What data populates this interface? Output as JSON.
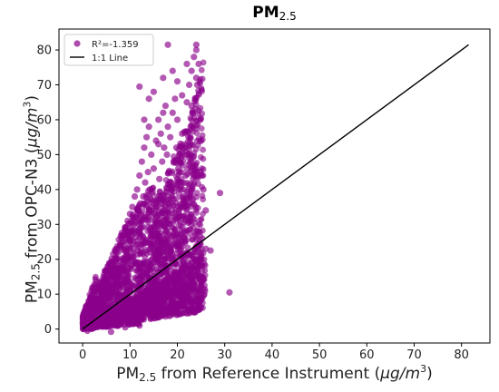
{
  "chart_data": {
    "type": "scatter",
    "title": {
      "main": "PM",
      "sub": "2.5"
    },
    "xlabel": {
      "pre": "PM",
      "sub": "2.5",
      "mid": " from Reference Instrument (",
      "italic": "μg/m",
      "sup": "3",
      "post": ")"
    },
    "ylabel": {
      "pre": "PM",
      "sub": "2.5",
      "mid": " from OPC-N3 (",
      "italic": "μg/m",
      "sup": "3",
      "post": ")"
    },
    "xlim": [
      -5,
      86
    ],
    "ylim": [
      -4,
      86
    ],
    "xticks": [
      0,
      10,
      20,
      30,
      40,
      50,
      60,
      70,
      80
    ],
    "yticks": [
      0,
      10,
      20,
      30,
      40,
      50,
      60,
      70,
      80
    ],
    "grid": false,
    "legend_position": "top-left",
    "series": [
      {
        "name": "R²=-1.359",
        "kind": "points",
        "color": "#8b008b",
        "points": [
          [
            0.3,
            0.2
          ],
          [
            0.5,
            0.6
          ],
          [
            0.8,
            1.0
          ],
          [
            1.0,
            0.5
          ],
          [
            1.2,
            1.8
          ],
          [
            1.5,
            2.2
          ],
          [
            1.8,
            1.0
          ],
          [
            2.0,
            3.0
          ],
          [
            2.2,
            2.0
          ],
          [
            2.5,
            4.0
          ],
          [
            2.8,
            1.5
          ],
          [
            3.0,
            5.0
          ],
          [
            3.2,
            3.0
          ],
          [
            3.5,
            6.5
          ],
          [
            3.8,
            4.5
          ],
          [
            4.0,
            8.0
          ],
          [
            4.2,
            2.5
          ],
          [
            4.5,
            10.0
          ],
          [
            4.8,
            6.0
          ],
          [
            5.0,
            12.0
          ],
          [
            5.2,
            7.5
          ],
          [
            5.5,
            14.0
          ],
          [
            5.8,
            9.0
          ],
          [
            6.0,
            15.0
          ],
          [
            6.2,
            11.0
          ],
          [
            6.5,
            17.0
          ],
          [
            6.8,
            13.0
          ],
          [
            7.0,
            20.0
          ],
          [
            7.2,
            16.0
          ],
          [
            7.5,
            22.0
          ],
          [
            7.8,
            18.0
          ],
          [
            8.0,
            24.0
          ],
          [
            8.2,
            15.0
          ],
          [
            8.5,
            27.0
          ],
          [
            8.8,
            20.0
          ],
          [
            9.0,
            29.0
          ],
          [
            9.2,
            22.0
          ],
          [
            9.5,
            31.0
          ],
          [
            9.8,
            26.0
          ],
          [
            10.0,
            33.0
          ],
          [
            10.2,
            28.0
          ],
          [
            10.5,
            35.0
          ],
          [
            10.8,
            30.0
          ],
          [
            11.0,
            38.0
          ],
          [
            11.2,
            32.0
          ],
          [
            11.5,
            40.0
          ],
          [
            11.8,
            34.0
          ],
          [
            12.0,
            44.0
          ],
          [
            12.2,
            36.0
          ],
          [
            12.5,
            48.0
          ],
          [
            12.8,
            38.0
          ],
          [
            13.0,
            52.0
          ],
          [
            13.2,
            42.0
          ],
          [
            13.5,
            55.0
          ],
          [
            13.8,
            45.0
          ],
          [
            14.0,
            58.0
          ],
          [
            14.2,
            40.0
          ],
          [
            14.5,
            50.0
          ],
          [
            14.8,
            36.0
          ],
          [
            15.0,
            46.0
          ],
          [
            15.2,
            33.0
          ],
          [
            15.5,
            54.0
          ],
          [
            15.8,
            38.0
          ],
          [
            16.0,
            60.0
          ],
          [
            16.2,
            43.0
          ],
          [
            16.5,
            56.0
          ],
          [
            16.8,
            48.0
          ],
          [
            17.0,
            62.0
          ],
          [
            17.2,
            52.0
          ],
          [
            17.5,
            64.0
          ],
          [
            17.8,
            50.0
          ],
          [
            18.0,
            58.0
          ],
          [
            18.2,
            45.0
          ],
          [
            18.5,
            55.0
          ],
          [
            18.8,
            40.0
          ],
          [
            19.0,
            62.0
          ],
          [
            19.2,
            48.0
          ],
          [
            19.5,
            66.0
          ],
          [
            19.8,
            52.0
          ],
          [
            20.0,
            60.0
          ],
          [
            20.2,
            46.0
          ],
          [
            20.5,
            50.0
          ],
          [
            20.8,
            42.0
          ],
          [
            21.0,
            56.0
          ],
          [
            21.2,
            38.0
          ],
          [
            21.5,
            52.0
          ],
          [
            21.8,
            44.0
          ],
          [
            22.0,
            65.0
          ],
          [
            22.2,
            50.0
          ],
          [
            22.5,
            70.0
          ],
          [
            22.8,
            58.0
          ],
          [
            23.0,
            74.0
          ],
          [
            23.2,
            62.0
          ],
          [
            23.5,
            78.0
          ],
          [
            23.8,
            66.0
          ],
          [
            24.0,
            80.0
          ],
          [
            24.2,
            70.0
          ],
          [
            24.5,
            76.0
          ],
          [
            24.8,
            60.0
          ],
          [
            25.0,
            54.0
          ],
          [
            25.2,
            44.0
          ],
          [
            25.5,
            40.0
          ],
          [
            12.0,
            69.5
          ],
          [
            18.0,
            81.5
          ],
          [
            24.0,
            81.5
          ],
          [
            14.0,
            66.0
          ],
          [
            26.0,
            34.0
          ],
          [
            29.0,
            39.0
          ],
          [
            27.0,
            22.5
          ],
          [
            31.0,
            10.5
          ],
          [
            5.0,
            3.0
          ],
          [
            6.0,
            4.0
          ],
          [
            7.0,
            5.0
          ],
          [
            8.0,
            5.5
          ],
          [
            9.0,
            6.5
          ],
          [
            10.0,
            7.0
          ],
          [
            11.0,
            8.0
          ],
          [
            12.0,
            9.0
          ],
          [
            13.0,
            10.0
          ],
          [
            14.0,
            10.5
          ],
          [
            15.0,
            11.5
          ],
          [
            16.0,
            12.5
          ],
          [
            17.0,
            13.0
          ],
          [
            18.0,
            14.0
          ],
          [
            19.0,
            15.0
          ],
          [
            20.0,
            16.0
          ],
          [
            21.0,
            17.0
          ],
          [
            22.0,
            18.0
          ],
          [
            23.0,
            19.0
          ],
          [
            24.0,
            20.0
          ],
          [
            25.0,
            21.0
          ],
          [
            26.0,
            23.0
          ],
          [
            4.0,
            1.5
          ],
          [
            6.5,
            2.5
          ],
          [
            8.0,
            2.0
          ],
          [
            10.0,
            3.0
          ],
          [
            12.0,
            3.5
          ],
          [
            14.0,
            4.0
          ],
          [
            16.0,
            4.5
          ],
          [
            18.0,
            5.0
          ],
          [
            20.0,
            6.0
          ],
          [
            22.0,
            7.0
          ],
          [
            24.0,
            8.0
          ],
          [
            25.0,
            8.5
          ],
          [
            19.0,
            7.0
          ],
          [
            21.0,
            8.0
          ],
          [
            23.0,
            8.5
          ],
          [
            17.0,
            6.0
          ],
          [
            15.0,
            5.5
          ],
          [
            13.0,
            5.0
          ],
          [
            11.0,
            4.5
          ],
          [
            9.0,
            4.0
          ],
          [
            7.0,
            3.0
          ],
          [
            5.5,
            2.0
          ],
          [
            3.5,
            1.0
          ],
          [
            2.0,
            0.5
          ],
          [
            1.0,
            -0.5
          ],
          [
            6.0,
            -0.8
          ],
          [
            9.0,
            0.5
          ],
          [
            12.0,
            1.0
          ],
          [
            13.0,
            60.0
          ],
          [
            15.0,
            68.0
          ],
          [
            17.0,
            72.0
          ],
          [
            19.0,
            74.0
          ],
          [
            21.0,
            67.0
          ],
          [
            23.0,
            64.0
          ],
          [
            24.0,
            72.0
          ],
          [
            22.0,
            76.0
          ],
          [
            20.0,
            71.0
          ],
          [
            16.0,
            53.0
          ]
        ]
      },
      {
        "name": "1:1 Line",
        "kind": "line",
        "color": "#000000",
        "points": [
          [
            0,
            0
          ],
          [
            81.5,
            81.5
          ]
        ]
      }
    ]
  }
}
